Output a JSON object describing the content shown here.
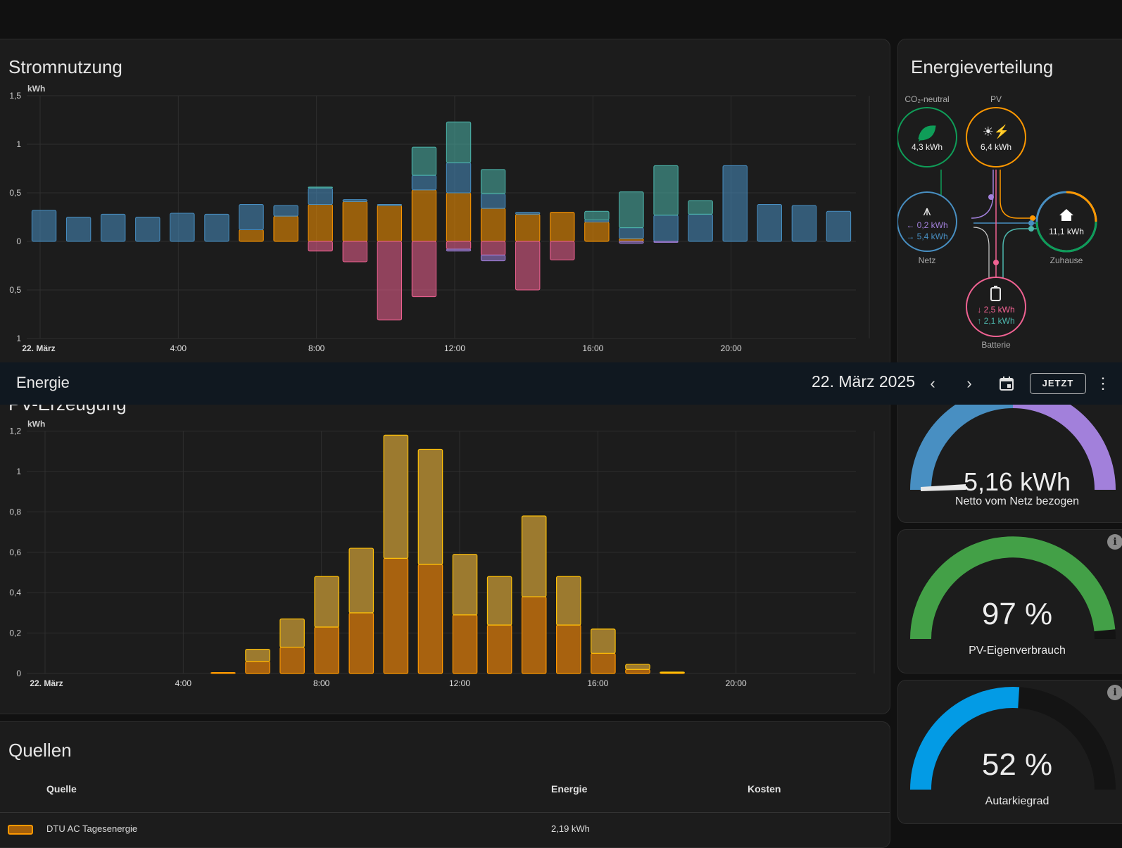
{
  "header": {
    "title": "Energie",
    "date": "22. März 2025",
    "prev_icon": "chevron-left-icon",
    "next_icon": "chevron-right-icon",
    "calendar_icon": "calendar-icon",
    "today_label": "JETZT",
    "menu_icon": "more-vert-icon"
  },
  "usage_card": {
    "title": "Stromnutzung",
    "unit": "kWh",
    "y_ticks_pos": [
      "1,5",
      "1",
      "0,5",
      "0"
    ],
    "y_ticks_neg": [
      "0,5",
      "1"
    ],
    "x_ticks": [
      "22. März",
      "4:00",
      "8:00",
      "12:00",
      "16:00",
      "20:00"
    ]
  },
  "flow_card": {
    "title": "Energieverteilung",
    "co2": {
      "label": "CO₂-neutral",
      "value": "4,3 kWh",
      "icon": "leaf-icon"
    },
    "pv": {
      "label": "PV",
      "value": "6,4 kWh",
      "icon": "solar-panel-icon"
    },
    "grid": {
      "label": "Netz",
      "in": "← 0,2 kWh",
      "out": "→ 5,4 kWh",
      "icon": "transmission-tower-icon"
    },
    "home": {
      "label": "Zuhause",
      "value": "11,1 kWh",
      "icon": "home-icon"
    },
    "battery": {
      "label": "Batterie",
      "in": "↓ 2,5 kWh",
      "out": "↑ 2,1 kWh",
      "icon": "battery-icon"
    }
  },
  "pv_card": {
    "title": "PV-Erzeugung",
    "unit": "kWh",
    "y_ticks": [
      "1,2",
      "1",
      "0,8",
      "0,6",
      "0,4",
      "0,2",
      "0"
    ],
    "x_ticks": [
      "22. März",
      "4:00",
      "8:00",
      "12:00",
      "16:00",
      "20:00"
    ]
  },
  "gauges": [
    {
      "value": "5,16 kWh",
      "label": "Netto vom Netz bezogen"
    },
    {
      "value": "97 %",
      "label": "PV-Eigenverbrauch",
      "fraction": 0.97
    },
    {
      "value": "52 %",
      "label": "Autarkiegrad",
      "fraction": 0.52
    }
  ],
  "sources_card": {
    "title": "Quellen",
    "columns": [
      "Quelle",
      "Energie",
      "Kosten"
    ],
    "rows": [
      {
        "name": "DTU AC Tagesenergie",
        "energy": "2,19 kWh",
        "color": "#ff9800"
      }
    ]
  },
  "colors": {
    "grid": "#488fc2",
    "solar": "#ff9800",
    "battery_in": "#f06292",
    "co2": "#0f9d58",
    "home": "#4db6ac",
    "accent_purple": "#a280db"
  },
  "chart_data": [
    {
      "type": "bar",
      "title": "Stromnutzung",
      "ylabel": "kWh",
      "ylim": [
        -1,
        1.5
      ],
      "categories": [
        "0:00",
        "1:00",
        "2:00",
        "3:00",
        "4:00",
        "5:00",
        "6:00",
        "7:00",
        "8:00",
        "9:00",
        "10:00",
        "11:00",
        "12:00",
        "13:00",
        "14:00",
        "15:00",
        "16:00",
        "17:00",
        "18:00",
        "19:00",
        "20:00",
        "21:00",
        "22:00",
        "23:00"
      ],
      "series": [
        {
          "color": "#ff9800",
          "values": [
            0,
            0,
            0,
            0,
            0,
            0,
            0.12,
            0.26,
            0.38,
            0.41,
            0.37,
            0.53,
            0.5,
            0.34,
            0.28,
            0.3,
            0.2,
            0.03,
            0,
            0,
            0,
            0,
            0,
            0
          ]
        },
        {
          "color": "#488fc2",
          "values": [
            0.32,
            0.25,
            0.28,
            0.25,
            0.29,
            0.28,
            0.26,
            0.11,
            0.17,
            0.02,
            0.01,
            0.15,
            0.31,
            0.15,
            0.02,
            0,
            0.02,
            0.11,
            0.27,
            0.28,
            0.78,
            0.38,
            0.37,
            0.31
          ]
        },
        {
          "color": "#4db6ac",
          "values": [
            0,
            0,
            0,
            0,
            0,
            0,
            0,
            0,
            0.01,
            0,
            0,
            0.29,
            0.42,
            0.25,
            0,
            0,
            0.09,
            0.37,
            0.51,
            0.14,
            0,
            0,
            0,
            0
          ]
        },
        {
          "color": "#f06292",
          "values": [
            0,
            0,
            0,
            0,
            0,
            0,
            0,
            0,
            -0.1,
            -0.21,
            -0.81,
            -0.57,
            -0.08,
            -0.14,
            -0.5,
            -0.19,
            0,
            0,
            0,
            0,
            0,
            0,
            0,
            0
          ]
        },
        {
          "color": "#a280db",
          "values": [
            0,
            0,
            0,
            0,
            0,
            0,
            0,
            0,
            0,
            0,
            0,
            0,
            -0.02,
            -0.06,
            0,
            0,
            0,
            -0.02,
            -0.01,
            0,
            0,
            0,
            0,
            0
          ]
        }
      ]
    },
    {
      "type": "bar",
      "title": "PV-Erzeugung",
      "ylabel": "kWh",
      "ylim": [
        0,
        1.2
      ],
      "categories": [
        "0:00",
        "1:00",
        "2:00",
        "3:00",
        "4:00",
        "5:00",
        "6:00",
        "7:00",
        "8:00",
        "9:00",
        "10:00",
        "11:00",
        "12:00",
        "13:00",
        "14:00",
        "15:00",
        "16:00",
        "17:00",
        "18:00",
        "19:00",
        "20:00",
        "21:00",
        "22:00",
        "23:00"
      ],
      "series": [
        {
          "color": "#ff9800",
          "values": [
            0,
            0,
            0,
            0,
            0,
            0.005,
            0.06,
            0.13,
            0.23,
            0.3,
            0.57,
            0.54,
            0.29,
            0.24,
            0.38,
            0.24,
            0.1,
            0.02,
            0.005,
            0,
            0,
            0,
            0,
            0
          ]
        },
        {
          "color": "#ffc107",
          "values": [
            0,
            0,
            0,
            0,
            0,
            0,
            0.06,
            0.14,
            0.25,
            0.32,
            0.61,
            0.57,
            0.3,
            0.24,
            0.4,
            0.24,
            0.12,
            0.025,
            0.002,
            0,
            0,
            0,
            0,
            0
          ]
        }
      ]
    }
  ]
}
